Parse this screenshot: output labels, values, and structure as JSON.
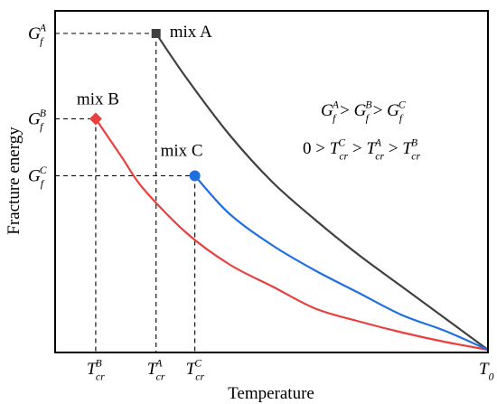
{
  "chart_data": {
    "type": "line",
    "xlabel": "Temperature",
    "ylabel": "Fracture energy",
    "xlim": [
      0,
      100
    ],
    "ylim": [
      0,
      100
    ],
    "grid": false,
    "legend": "none",
    "series": [
      {
        "name": "mix A",
        "color": "#404040",
        "marker": "square",
        "points": [
          [
            23,
            100
          ],
          [
            30,
            86
          ],
          [
            40,
            68
          ],
          [
            50,
            53
          ],
          [
            60,
            41
          ],
          [
            70,
            30
          ],
          [
            80,
            20
          ],
          [
            90,
            10
          ],
          [
            100,
            0
          ]
        ]
      },
      {
        "name": "mix B",
        "color": "#e8403f",
        "marker": "diamond",
        "points": [
          [
            9,
            73
          ],
          [
            15,
            61
          ],
          [
            20,
            51
          ],
          [
            30,
            37
          ],
          [
            40,
            27
          ],
          [
            50,
            20
          ],
          [
            60,
            13
          ],
          [
            70,
            9
          ],
          [
            80,
            5.5
          ],
          [
            90,
            2.5
          ],
          [
            100,
            0
          ]
        ]
      },
      {
        "name": "mix C",
        "color": "#1f6fe0",
        "marker": "circle",
        "points": [
          [
            32,
            55
          ],
          [
            40,
            43
          ],
          [
            50,
            33
          ],
          [
            60,
            25
          ],
          [
            70,
            18
          ],
          [
            80,
            11
          ],
          [
            90,
            6
          ],
          [
            100,
            0
          ]
        ]
      }
    ],
    "y_ticks": [
      {
        "base": "G",
        "sub": "f",
        "sup": "A",
        "value": 100
      },
      {
        "base": "G",
        "sub": "f",
        "sup": "B",
        "value": 73
      },
      {
        "base": "G",
        "sub": "f",
        "sup": "C",
        "value": 55
      }
    ],
    "x_ticks": [
      {
        "base": "T",
        "sub": "cr",
        "sup": "B",
        "value": 9
      },
      {
        "base": "T",
        "sub": "cr",
        "sup": "A",
        "value": 23
      },
      {
        "base": "T",
        "sub": "cr",
        "sup": "C",
        "value": 32
      },
      {
        "base": "T",
        "sub": "0",
        "sup": "",
        "value": 100
      }
    ],
    "annotations": {
      "line1": [
        {
          "base": "G",
          "sub": "f",
          "sup": "A"
        },
        {
          "op": " > "
        },
        {
          "base": "G",
          "sub": "f",
          "sup": "B"
        },
        {
          "op": " > "
        },
        {
          "base": "G",
          "sub": "f",
          "sup": "C"
        }
      ],
      "line2": [
        {
          "op": "0 > "
        },
        {
          "base": "T",
          "sub": "cr",
          "sup": "C"
        },
        {
          "op": " > "
        },
        {
          "base": "T",
          "sub": "cr",
          "sup": "A"
        },
        {
          "op": " > "
        },
        {
          "base": "T",
          "sub": "cr",
          "sup": "B"
        }
      ]
    }
  }
}
